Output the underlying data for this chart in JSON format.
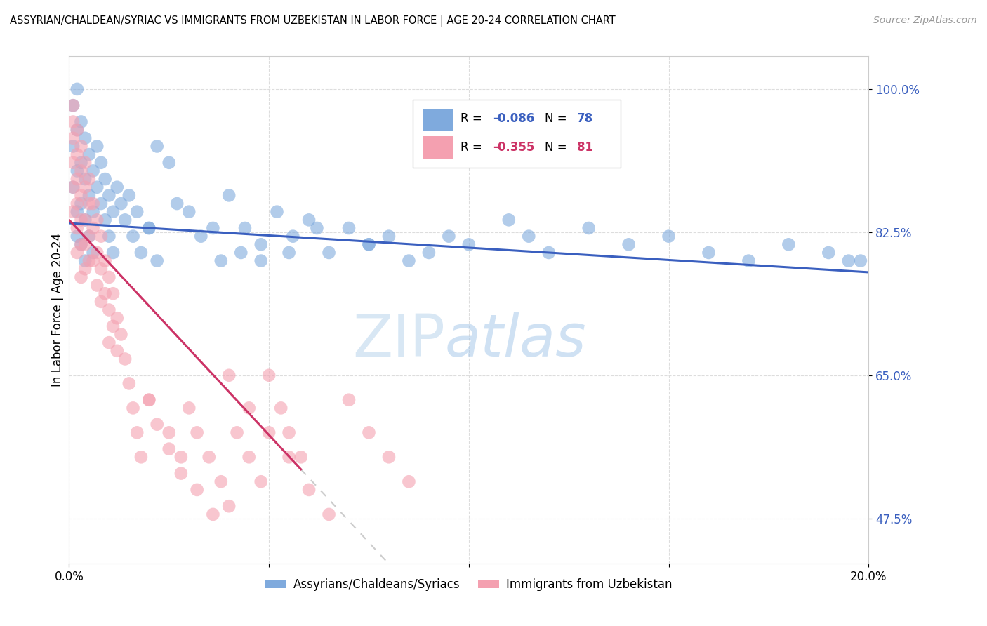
{
  "title": "ASSYRIAN/CHALDEAN/SYRIAC VS IMMIGRANTS FROM UZBEKISTAN IN LABOR FORCE | AGE 20-24 CORRELATION CHART",
  "source_text": "Source: ZipAtlas.com",
  "ylabel": "In Labor Force | Age 20-24",
  "xlim": [
    0.0,
    0.2
  ],
  "ylim": [
    0.42,
    1.04
  ],
  "ytick_vals": [
    0.475,
    0.65,
    0.825,
    1.0
  ],
  "ytick_labels": [
    "47.5%",
    "65.0%",
    "82.5%",
    "100.0%"
  ],
  "xtick_vals": [
    0.0,
    0.05,
    0.1,
    0.15,
    0.2
  ],
  "xtick_labels": [
    "0.0%",
    "",
    "",
    "",
    "20.0%"
  ],
  "background_color": "#ffffff",
  "grid_color": "#dddddd",
  "blue_scatter_color": "#7faadd",
  "pink_scatter_color": "#f4a0b0",
  "blue_line_color": "#3a5fbf",
  "pink_line_color": "#cc3366",
  "dashed_line_color": "#cccccc",
  "series1_label": "Assyrians/Chaldeans/Syriacs",
  "series2_label": "Immigrants from Uzbekistan",
  "watermark": "ZIPatlas",
  "blue_x": [
    0.001,
    0.001,
    0.001,
    0.002,
    0.002,
    0.002,
    0.002,
    0.002,
    0.003,
    0.003,
    0.003,
    0.003,
    0.004,
    0.004,
    0.004,
    0.004,
    0.005,
    0.005,
    0.005,
    0.006,
    0.006,
    0.006,
    0.007,
    0.007,
    0.008,
    0.008,
    0.009,
    0.009,
    0.01,
    0.01,
    0.011,
    0.011,
    0.012,
    0.013,
    0.014,
    0.015,
    0.016,
    0.017,
    0.018,
    0.02,
    0.022,
    0.025,
    0.027,
    0.03,
    0.033,
    0.036,
    0.04,
    0.044,
    0.048,
    0.052,
    0.056,
    0.06,
    0.065,
    0.07,
    0.075,
    0.08,
    0.085,
    0.09,
    0.095,
    0.1,
    0.11,
    0.115,
    0.12,
    0.13,
    0.14,
    0.15,
    0.16,
    0.17,
    0.18,
    0.19,
    0.195,
    0.198,
    0.048,
    0.055,
    0.062,
    0.075,
    0.038,
    0.043,
    0.02,
    0.022
  ],
  "blue_y": [
    0.98,
    0.93,
    0.88,
    1.0,
    0.95,
    0.9,
    0.85,
    0.82,
    0.96,
    0.91,
    0.86,
    0.81,
    0.94,
    0.89,
    0.84,
    0.79,
    0.92,
    0.87,
    0.82,
    0.9,
    0.85,
    0.8,
    0.93,
    0.88,
    0.91,
    0.86,
    0.89,
    0.84,
    0.87,
    0.82,
    0.85,
    0.8,
    0.88,
    0.86,
    0.84,
    0.87,
    0.82,
    0.85,
    0.8,
    0.83,
    0.93,
    0.91,
    0.86,
    0.85,
    0.82,
    0.83,
    0.87,
    0.83,
    0.79,
    0.85,
    0.82,
    0.84,
    0.8,
    0.83,
    0.81,
    0.82,
    0.79,
    0.8,
    0.82,
    0.81,
    0.84,
    0.82,
    0.8,
    0.83,
    0.81,
    0.82,
    0.8,
    0.79,
    0.81,
    0.8,
    0.79,
    0.79,
    0.81,
    0.8,
    0.83,
    0.81,
    0.79,
    0.8,
    0.83,
    0.79
  ],
  "pink_x": [
    0.001,
    0.001,
    0.001,
    0.001,
    0.001,
    0.001,
    0.002,
    0.002,
    0.002,
    0.002,
    0.002,
    0.002,
    0.003,
    0.003,
    0.003,
    0.003,
    0.003,
    0.003,
    0.004,
    0.004,
    0.004,
    0.004,
    0.004,
    0.005,
    0.005,
    0.005,
    0.005,
    0.006,
    0.006,
    0.006,
    0.007,
    0.007,
    0.007,
    0.008,
    0.008,
    0.008,
    0.009,
    0.009,
    0.01,
    0.01,
    0.01,
    0.011,
    0.011,
    0.012,
    0.012,
    0.013,
    0.014,
    0.015,
    0.016,
    0.017,
    0.018,
    0.02,
    0.022,
    0.025,
    0.028,
    0.03,
    0.032,
    0.035,
    0.038,
    0.04,
    0.042,
    0.045,
    0.048,
    0.05,
    0.053,
    0.055,
    0.058,
    0.02,
    0.025,
    0.028,
    0.032,
    0.036,
    0.04,
    0.045,
    0.05,
    0.055,
    0.06,
    0.065,
    0.07,
    0.075,
    0.08,
    0.085
  ],
  "pink_y": [
    0.98,
    0.96,
    0.94,
    0.91,
    0.88,
    0.85,
    0.95,
    0.92,
    0.89,
    0.86,
    0.83,
    0.8,
    0.93,
    0.9,
    0.87,
    0.84,
    0.81,
    0.77,
    0.91,
    0.88,
    0.84,
    0.81,
    0.78,
    0.89,
    0.86,
    0.82,
    0.79,
    0.86,
    0.83,
    0.79,
    0.84,
    0.8,
    0.76,
    0.82,
    0.78,
    0.74,
    0.79,
    0.75,
    0.77,
    0.73,
    0.69,
    0.75,
    0.71,
    0.72,
    0.68,
    0.7,
    0.67,
    0.64,
    0.61,
    0.58,
    0.55,
    0.62,
    0.59,
    0.56,
    0.53,
    0.61,
    0.58,
    0.55,
    0.52,
    0.49,
    0.58,
    0.55,
    0.52,
    0.65,
    0.61,
    0.58,
    0.55,
    0.62,
    0.58,
    0.55,
    0.51,
    0.48,
    0.65,
    0.61,
    0.58,
    0.55,
    0.51,
    0.48,
    0.62,
    0.58,
    0.55,
    0.52
  ]
}
